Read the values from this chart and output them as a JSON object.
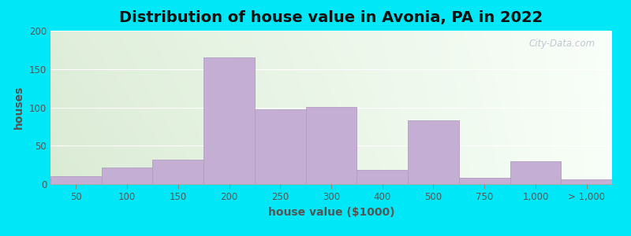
{
  "title": "Distribution of house value in Avonia, PA in 2022",
  "xlabel": "house value ($1000)",
  "ylabel": "houses",
  "bar_color": "#c4aed4",
  "bar_edge_color": "#b09dc0",
  "ylim": [
    0,
    200
  ],
  "yticks": [
    0,
    50,
    100,
    150,
    200
  ],
  "tick_labels": [
    "50",
    "100",
    "150",
    "200",
    "250",
    "300",
    "400",
    "500",
    "750",
    "1,000",
    "> 1,000"
  ],
  "values": [
    10,
    22,
    32,
    165,
    97,
    101,
    18,
    83,
    8,
    30,
    6
  ],
  "title_fontsize": 14,
  "label_fontsize": 10,
  "tick_fontsize": 8.5,
  "watermark_text": "City-Data.com",
  "outer_bg": "#00e8f8",
  "grad_color_left": "#daebd4",
  "grad_color_right": "#f5fff5"
}
